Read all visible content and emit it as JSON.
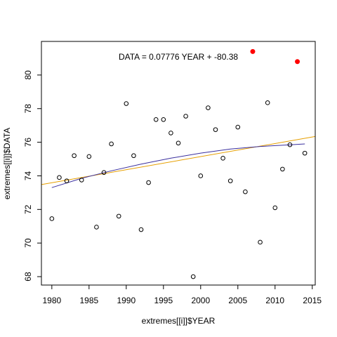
{
  "chart_data": {
    "type": "scatter",
    "title": "",
    "xlabel": "extremes[[i]]$YEAR",
    "ylabel": "extremes[[i]]$DATA",
    "xlim": [
      1978.6,
      2015.4
    ],
    "ylim": [
      67.5,
      82.0
    ],
    "x_ticks": [
      1980,
      1985,
      1990,
      1995,
      2000,
      2005,
      2010,
      2015
    ],
    "y_ticks": [
      68,
      70,
      72,
      74,
      76,
      78,
      80
    ],
    "grid": false,
    "annotation": "DATA = 0.07776 YEAR + -80.38",
    "points": [
      {
        "x": 1980,
        "y": 71.45
      },
      {
        "x": 1981,
        "y": 73.9
      },
      {
        "x": 1982,
        "y": 73.7
      },
      {
        "x": 1983,
        "y": 75.2
      },
      {
        "x": 1984,
        "y": 73.75
      },
      {
        "x": 1985,
        "y": 75.15
      },
      {
        "x": 1986,
        "y": 70.95
      },
      {
        "x": 1987,
        "y": 74.2
      },
      {
        "x": 1988,
        "y": 75.9
      },
      {
        "x": 1989,
        "y": 71.6
      },
      {
        "x": 1990,
        "y": 78.3
      },
      {
        "x": 1991,
        "y": 75.2
      },
      {
        "x": 1992,
        "y": 70.8
      },
      {
        "x": 1993,
        "y": 73.6
      },
      {
        "x": 1994,
        "y": 77.35
      },
      {
        "x": 1995,
        "y": 77.35
      },
      {
        "x": 1996,
        "y": 76.55
      },
      {
        "x": 1997,
        "y": 75.95
      },
      {
        "x": 1998,
        "y": 77.55
      },
      {
        "x": 1999,
        "y": 68.0
      },
      {
        "x": 2000,
        "y": 74.0
      },
      {
        "x": 2001,
        "y": 78.05
      },
      {
        "x": 2002,
        "y": 76.75
      },
      {
        "x": 2003,
        "y": 75.05
      },
      {
        "x": 2004,
        "y": 73.7
      },
      {
        "x": 2005,
        "y": 76.9
      },
      {
        "x": 2006,
        "y": 73.05
      },
      {
        "x": 2008,
        "y": 70.05
      },
      {
        "x": 2009,
        "y": 78.35
      },
      {
        "x": 2010,
        "y": 72.1
      },
      {
        "x": 2011,
        "y": 74.4
      },
      {
        "x": 2012,
        "y": 75.85
      },
      {
        "x": 2014,
        "y": 75.35
      }
    ],
    "highlighted_points": [
      {
        "x": 2007,
        "y": 81.4
      },
      {
        "x": 2013,
        "y": 80.8
      }
    ],
    "fit_lines": [
      {
        "kind": "linear",
        "color": "#e69f00",
        "x": [
          1978.6,
          2015.4
        ],
        "y": [
          73.48,
          76.34
        ]
      },
      {
        "kind": "smooth",
        "color": "#3a2f9e",
        "x": [
          1980,
          1984,
          1988,
          1992,
          1996,
          2000,
          2004,
          2008,
          2012,
          2014
        ],
        "y": [
          73.3,
          73.85,
          74.3,
          74.7,
          75.05,
          75.35,
          75.6,
          75.75,
          75.85,
          75.9
        ]
      }
    ],
    "colors": {
      "points": "#000000",
      "highlight": "#ff0000",
      "axis": "#000000"
    }
  }
}
